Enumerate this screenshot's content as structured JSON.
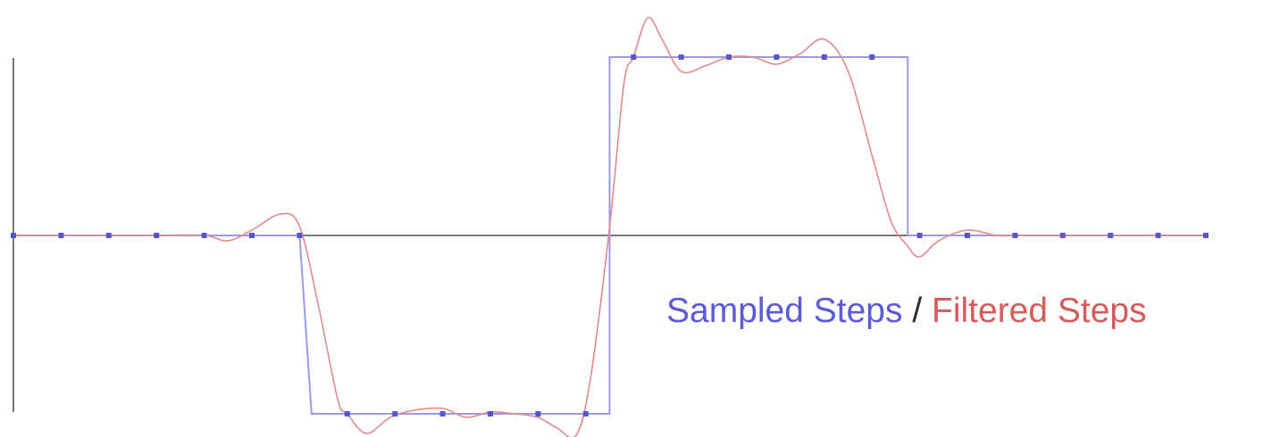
{
  "chart_data": {
    "type": "line",
    "title": "",
    "xlabel": "",
    "ylabel": "",
    "grid": false,
    "legend_placement": "center-right",
    "legend": {
      "sampled_label": "Sampled Steps",
      "separator": " / ",
      "filtered_label": "Filtered Steps"
    },
    "colors": {
      "sampled": "#9999ee",
      "sample_points": "#5555cc",
      "filtered": "#e08a8a",
      "axis": "#777777",
      "legend_sampled": "#5b5bd6",
      "legend_filtered": "#d65b5b",
      "legend_separator": "#2a2a2a"
    },
    "xlim": [
      0,
      25
    ],
    "ylim": [
      -1.12,
      1.22
    ],
    "series": [
      {
        "name": "Sampled Steps",
        "style": "step",
        "x": [
          0,
          6,
          6.25,
          12.5,
          12.5,
          18.75,
          18.75,
          25
        ],
        "y": [
          0,
          0,
          -1,
          -1,
          1,
          1,
          0,
          0
        ]
      },
      {
        "name": "Sampled Steps",
        "style": "points",
        "x": [
          0,
          1,
          2,
          3,
          4,
          5,
          6,
          7,
          8,
          9,
          10,
          11,
          12,
          13,
          14,
          15,
          16,
          17,
          18,
          19,
          20,
          21,
          22,
          23,
          24,
          25
        ],
        "y": [
          0,
          0,
          0,
          0,
          0,
          0,
          0,
          -1,
          -1,
          -1,
          -1,
          -1,
          -1,
          1,
          1,
          1,
          1,
          1,
          1,
          0,
          0,
          0,
          0,
          0,
          0,
          0
        ]
      },
      {
        "name": "Filtered Steps",
        "style": "smooth",
        "x": [
          0,
          1,
          2,
          3,
          4,
          4.5,
          5,
          5.6,
          6,
          6.4,
          6.8,
          7,
          7.4,
          7.9,
          8.4,
          9,
          9.5,
          10,
          10.5,
          11,
          11.4,
          11.8,
          12.1,
          12.5,
          12.8,
          13,
          13.3,
          13.6,
          14,
          14.5,
          15,
          15.5,
          16,
          16.5,
          17,
          17.5,
          18,
          18.4,
          18.75,
          19,
          19.4,
          20,
          20.6,
          21,
          22,
          23,
          24,
          25
        ],
        "y": [
          0,
          0,
          0,
          0,
          0,
          -0.03,
          0.03,
          0.12,
          0.05,
          -0.4,
          -0.92,
          -1.0,
          -1.11,
          -1.02,
          -0.98,
          -0.97,
          -1.02,
          -0.99,
          -1.0,
          -1.02,
          -1.08,
          -1.12,
          -0.8,
          0.05,
          0.85,
          1.0,
          1.22,
          1.1,
          0.92,
          0.95,
          1.0,
          1.0,
          0.96,
          1.02,
          1.1,
          0.92,
          0.45,
          0.08,
          -0.06,
          -0.12,
          -0.03,
          0.03,
          0.0,
          0.0,
          0.0,
          0.0,
          0.0,
          0.0
        ]
      }
    ]
  }
}
